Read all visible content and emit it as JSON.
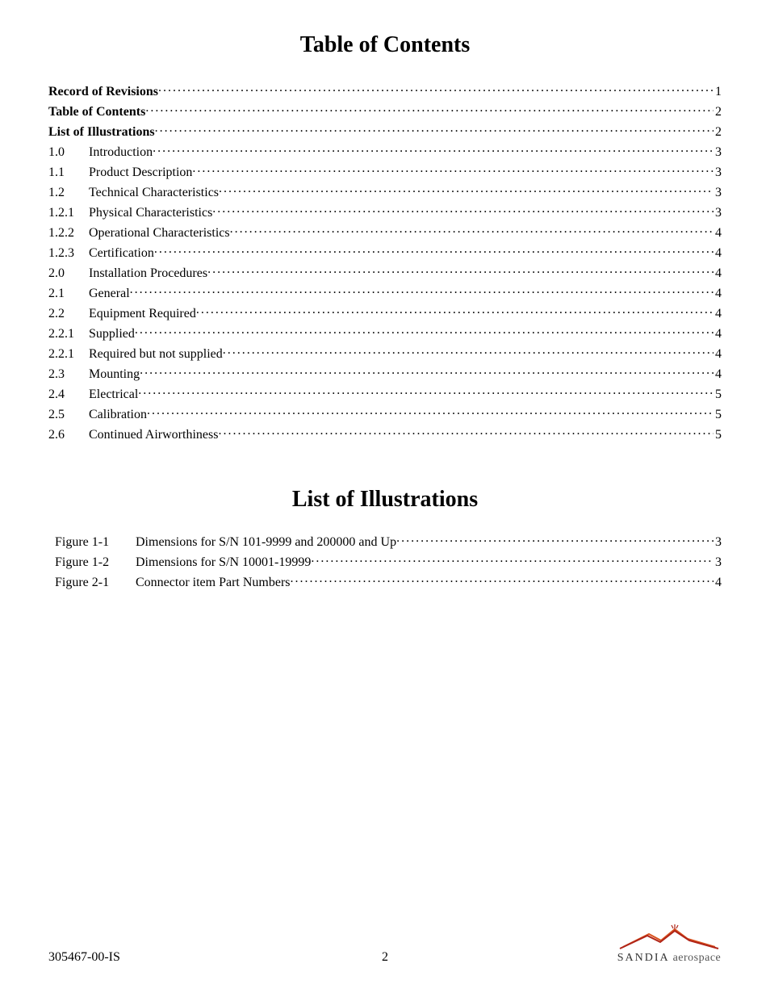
{
  "headings": {
    "toc_title": "Table of Contents",
    "lof_title": "List of Illustrations"
  },
  "toc": [
    {
      "num": "",
      "label": "Record of Revisions",
      "page": "1",
      "bold": true,
      "num_bold": false
    },
    {
      "num": "",
      "label": "Table of Contents ",
      "page": "2",
      "bold": true,
      "num_bold": false
    },
    {
      "num": "",
      "label": "List of Illustrations",
      "page": "2",
      "bold": true,
      "num_bold": false
    },
    {
      "num": "1.0",
      "label": "Introduction ",
      "page": "3",
      "bold": false,
      "num_bold": false
    },
    {
      "num": "1.1",
      "label": "Product Description",
      "page": "3",
      "bold": false,
      "num_bold": false
    },
    {
      "num": "1.2",
      "label": "Technical Characteristics",
      "page": "3",
      "bold": false,
      "num_bold": false
    },
    {
      "num": "1.2.1",
      "label": "Physical Characteristics",
      "page": "3",
      "bold": false,
      "num_bold": false
    },
    {
      "num": "1.2.2",
      "label": "Operational Characteristics ",
      "page": "4",
      "bold": false,
      "num_bold": false
    },
    {
      "num": "1.2.3",
      "label": "Certification",
      "page": "4",
      "bold": false,
      "num_bold": false
    },
    {
      "num": "2.0",
      "label": "Installation Procedures ",
      "page": "4",
      "bold": false,
      "num_bold": false
    },
    {
      "num": "2.1",
      "label": "General ",
      "page": "4",
      "bold": false,
      "num_bold": false
    },
    {
      "num": "2.2",
      "label": "Equipment Required",
      "page": "4",
      "bold": false,
      "num_bold": false
    },
    {
      "num": "2.2.1",
      "label": "Supplied",
      "page": "4",
      "bold": false,
      "num_bold": false
    },
    {
      "num": "2.2.1",
      "label": "Required but not supplied ",
      "page": "4",
      "bold": false,
      "num_bold": false
    },
    {
      "num": "2.3",
      "label": "Mounting ",
      "page": "4",
      "bold": false,
      "num_bold": false
    },
    {
      "num": "2.4",
      "label": "Electrical",
      "page": "5",
      "bold": false,
      "num_bold": false
    },
    {
      "num": "2.5",
      "label": "Calibration",
      "page": "5",
      "bold": false,
      "num_bold": false
    },
    {
      "num": "2.6",
      "label": "Continued Airworthiness",
      "page": "5",
      "bold": false,
      "num_bold": false
    }
  ],
  "lof": [
    {
      "num": "Figure 1-1",
      "label": "Dimensions for S/N 101-9999 and 200000 and Up",
      "page": "3"
    },
    {
      "num": "Figure 1-2",
      "label": "Dimensions for S/N 10001-19999 ",
      "page": "3"
    },
    {
      "num": "Figure 2-1",
      "label": "Connector item Part Numbers",
      "page": "4"
    }
  ],
  "footer": {
    "doc_number": "305467-00-IS",
    "page_number": "2",
    "logo_brand": "SANDIA",
    "logo_suffix": " aerospace"
  },
  "colors": {
    "text": "#000000",
    "background": "#ffffff",
    "logo_orange": "#d9531e",
    "logo_red": "#b02418",
    "logo_gray": "#666666"
  }
}
